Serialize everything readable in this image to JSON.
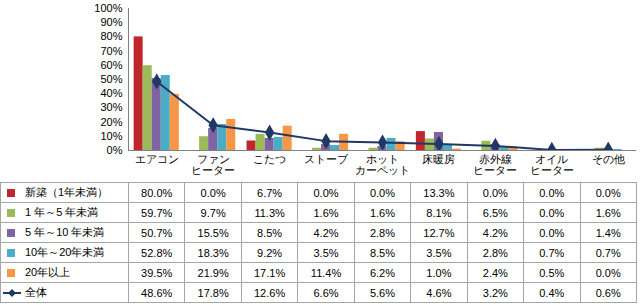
{
  "chart_data": {
    "type": "bar",
    "categories": [
      "エアコン",
      "ファン\nヒーター",
      "こたつ",
      "ストーブ",
      "ホット\nカーペット",
      "床暖房",
      "赤外線\nヒーター",
      "オイル\nヒーター",
      "その他"
    ],
    "ylim": [
      0,
      100
    ],
    "yticks": [
      {
        "value": 0,
        "label": "0%"
      },
      {
        "value": 10,
        "label": "10%"
      },
      {
        "value": 20,
        "label": "20%"
      },
      {
        "value": 30,
        "label": "30%"
      },
      {
        "value": 40,
        "label": "40%"
      },
      {
        "value": 50,
        "label": "50%"
      },
      {
        "value": 60,
        "label": "60%"
      },
      {
        "value": 70,
        "label": "70%"
      },
      {
        "value": 80,
        "label": "80%"
      },
      {
        "value": 90,
        "label": "90%"
      },
      {
        "value": 100,
        "label": "100%"
      }
    ],
    "grid": false,
    "series": [
      {
        "name": "新築（1年未満）",
        "color": "#c0272d",
        "type": "bar",
        "values": [
          80.0,
          0.0,
          6.7,
          0.0,
          0.0,
          13.3,
          0.0,
          0.0,
          0.0
        ],
        "value_labels": [
          "80.0%",
          "0.0%",
          "6.7%",
          "0.0%",
          "0.0%",
          "13.3%",
          "0.0%",
          "0.0%",
          "0.0%"
        ]
      },
      {
        "name": "1 年～5 年未満",
        "color": "#9bbb59",
        "type": "bar",
        "values": [
          59.7,
          9.7,
          11.3,
          1.6,
          1.6,
          8.1,
          6.5,
          0.0,
          1.6
        ],
        "value_labels": [
          "59.7%",
          "9.7%",
          "11.3%",
          "1.6%",
          "1.6%",
          "8.1%",
          "6.5%",
          "0.0%",
          "1.6%"
        ]
      },
      {
        "name": "5 年～10 年未満",
        "color": "#8064a2",
        "type": "bar",
        "values": [
          50.7,
          15.5,
          8.5,
          4.2,
          2.8,
          12.7,
          4.2,
          0.0,
          1.4
        ],
        "value_labels": [
          "50.7%",
          "15.5%",
          "8.5%",
          "4.2%",
          "2.8%",
          "12.7%",
          "4.2%",
          "0.0%",
          "1.4%"
        ]
      },
      {
        "name": "10年～20年未満",
        "color": "#4bacc6",
        "type": "bar",
        "values": [
          52.8,
          18.3,
          9.2,
          3.5,
          8.5,
          3.5,
          2.8,
          0.7,
          0.7
        ],
        "value_labels": [
          "52.8%",
          "18.3%",
          "9.2%",
          "3.5%",
          "8.5%",
          "3.5%",
          "2.8%",
          "0.7%",
          "0.7%"
        ]
      },
      {
        "name": "20年以上",
        "color": "#f79646",
        "type": "bar",
        "values": [
          39.5,
          21.9,
          17.1,
          11.4,
          6.2,
          1.0,
          2.4,
          0.5,
          0.0
        ],
        "value_labels": [
          "39.5%",
          "21.9%",
          "17.1%",
          "11.4%",
          "6.2%",
          "1.0%",
          "2.4%",
          "0.5%",
          "0.0%"
        ]
      },
      {
        "name": "全体",
        "color": "#1f3864",
        "type": "line",
        "marker": "diamond",
        "values": [
          48.6,
          17.8,
          12.6,
          6.6,
          5.6,
          4.6,
          3.2,
          0.4,
          0.6
        ],
        "value_labels": [
          "48.6%",
          "17.8%",
          "12.6%",
          "6.6%",
          "5.6%",
          "4.6%",
          "3.2%",
          "0.4%",
          "0.6%"
        ]
      }
    ]
  }
}
